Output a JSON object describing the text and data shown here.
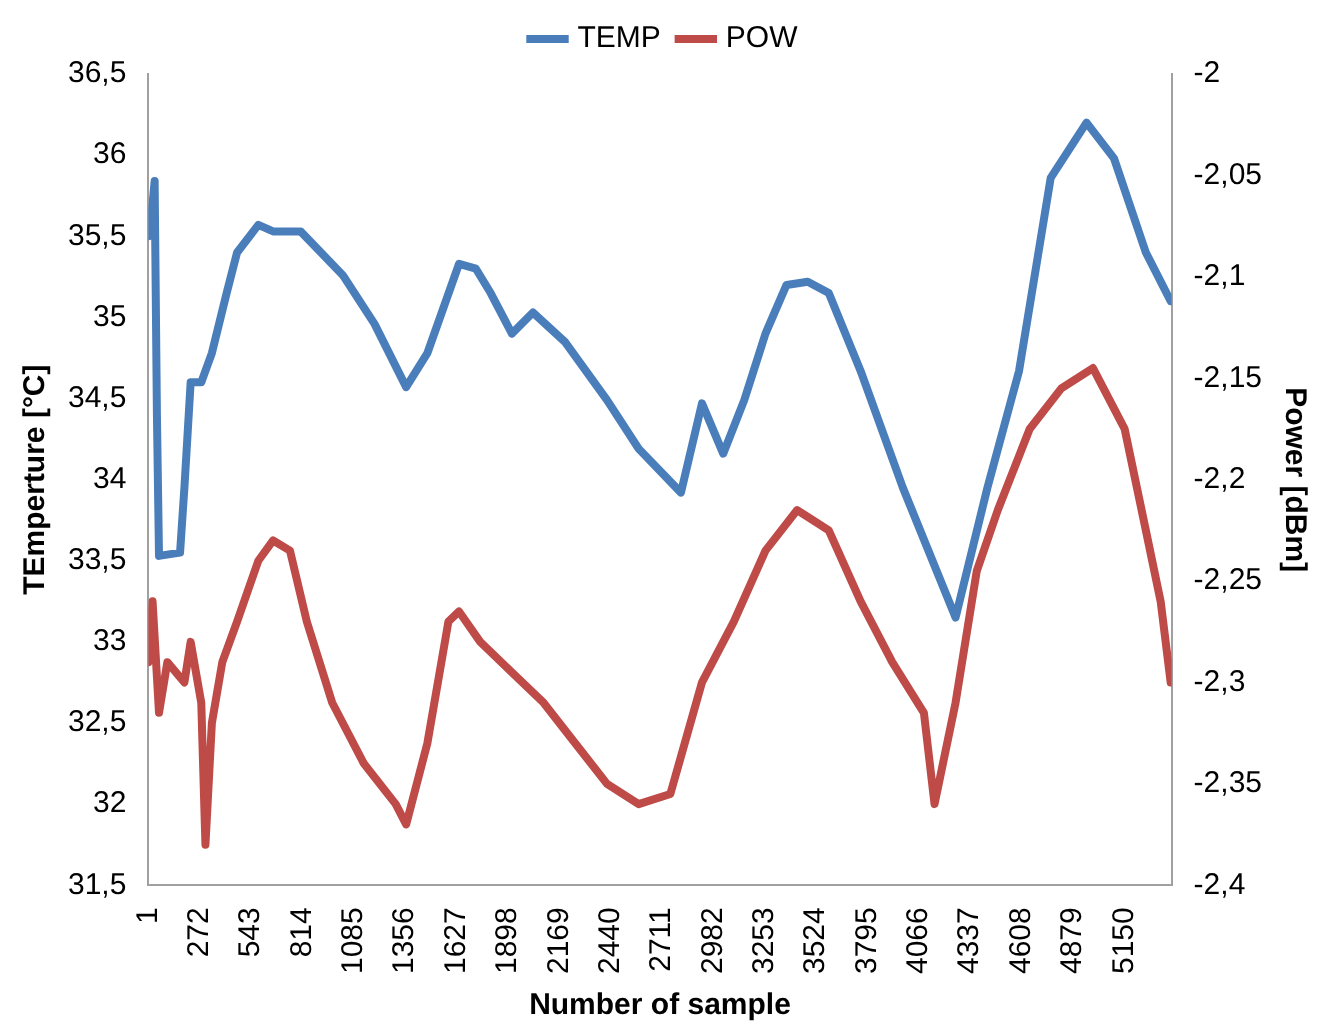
{
  "chart_data": {
    "type": "line",
    "xlabel": "Number of sample",
    "ylabel": "TEmperture [°C]",
    "y2label": "Power [dBm]",
    "legend": "top",
    "grid": false,
    "marker": "none",
    "line_style": "solid",
    "xlim": [
      1,
      5400
    ],
    "xticks": [
      1,
      272,
      543,
      814,
      1085,
      1356,
      1627,
      1898,
      2169,
      2440,
      2711,
      2982,
      3253,
      3524,
      3795,
      4066,
      4337,
      4608,
      4879,
      5150
    ],
    "ylim": [
      31.5,
      36.5
    ],
    "yticks": [
      {
        "value": 31.5,
        "label": "31,5"
      },
      32,
      {
        "value": 32.5,
        "label": "32,5"
      },
      33,
      {
        "value": 33.5,
        "label": "33,5"
      },
      34,
      {
        "value": 34.5,
        "label": "34,5"
      },
      35,
      {
        "value": 35.5,
        "label": "35,5"
      },
      36,
      {
        "value": 36.5,
        "label": "36,5"
      }
    ],
    "y2lim": [
      -2.4,
      -2
    ],
    "y2ticks": [
      {
        "value": -2.4,
        "label": "-2,4"
      },
      {
        "value": -2.35,
        "label": "-2,35"
      },
      {
        "value": -2.3,
        "label": "-2,3"
      },
      {
        "value": -2.25,
        "label": "-2,25"
      },
      {
        "value": -2.2,
        "label": "-2,2"
      },
      {
        "value": -2.15,
        "label": "-2,15"
      },
      {
        "value": -2.1,
        "label": "-2,1"
      },
      {
        "value": -2.05,
        "label": "-2,05"
      },
      -2
    ],
    "series": [
      {
        "name": "TEMP",
        "color": "#4a7ebb",
        "x": [
          1,
          23,
          34,
          46,
          57,
          168,
          191,
          224,
          280,
          336,
          414,
          469,
          581,
          659,
          804,
          1027,
          1194,
          1361,
          1473,
          1640,
          1729,
          1807,
          1919,
          2030,
          2198,
          2421,
          2588,
          2811,
          2922,
          3034,
          3145,
          3257,
          3368,
          3480,
          3591,
          3759,
          3982,
          4260,
          4428,
          4595,
          4762,
          4951,
          5096,
          5264,
          5395
        ],
        "values": [
          35.5,
          35.7,
          35.84,
          34.4,
          33.53,
          33.55,
          33.95,
          34.6,
          34.6,
          34.78,
          35.15,
          35.4,
          35.57,
          35.53,
          35.53,
          35.26,
          34.96,
          34.57,
          34.78,
          35.33,
          35.3,
          35.15,
          34.9,
          35.03,
          34.85,
          34.49,
          34.19,
          33.92,
          34.47,
          34.16,
          34.49,
          34.9,
          35.2,
          35.22,
          35.15,
          34.67,
          33.95,
          33.15,
          33.95,
          34.67,
          35.86,
          36.2,
          35.98,
          35.4,
          35.1
        ]
      },
      {
        "name": "POW",
        "color": "#be4b48",
        "axis": "y2",
        "x": [
          1,
          23,
          57,
          101,
          191,
          224,
          280,
          302,
          336,
          391,
          469,
          581,
          659,
          748,
          837,
          971,
          1138,
          1306,
          1361,
          1473,
          1584,
          1640,
          1752,
          1919,
          2086,
          2253,
          2421,
          2588,
          2755,
          2922,
          3090,
          3257,
          3424,
          3591,
          3759,
          3926,
          4093,
          4149,
          4260,
          4372,
          4483,
          4651,
          4818,
          4985,
          5152,
          5264,
          5342,
          5395
        ],
        "values": [
          -2.29,
          -2.26,
          -2.315,
          -2.29,
          -2.3,
          -2.28,
          -2.31,
          -2.38,
          -2.32,
          -2.29,
          -2.27,
          -2.24,
          -2.23,
          -2.235,
          -2.27,
          -2.31,
          -2.34,
          -2.36,
          -2.37,
          -2.33,
          -2.27,
          -2.265,
          -2.28,
          -2.295,
          -2.31,
          -2.33,
          -2.35,
          -2.36,
          -2.355,
          -2.3,
          -2.27,
          -2.235,
          -2.215,
          -2.225,
          -2.26,
          -2.29,
          -2.315,
          -2.36,
          -2.31,
          -2.245,
          -2.215,
          -2.175,
          -2.155,
          -2.145,
          -2.175,
          -2.225,
          -2.26,
          -2.3
        ]
      }
    ]
  }
}
